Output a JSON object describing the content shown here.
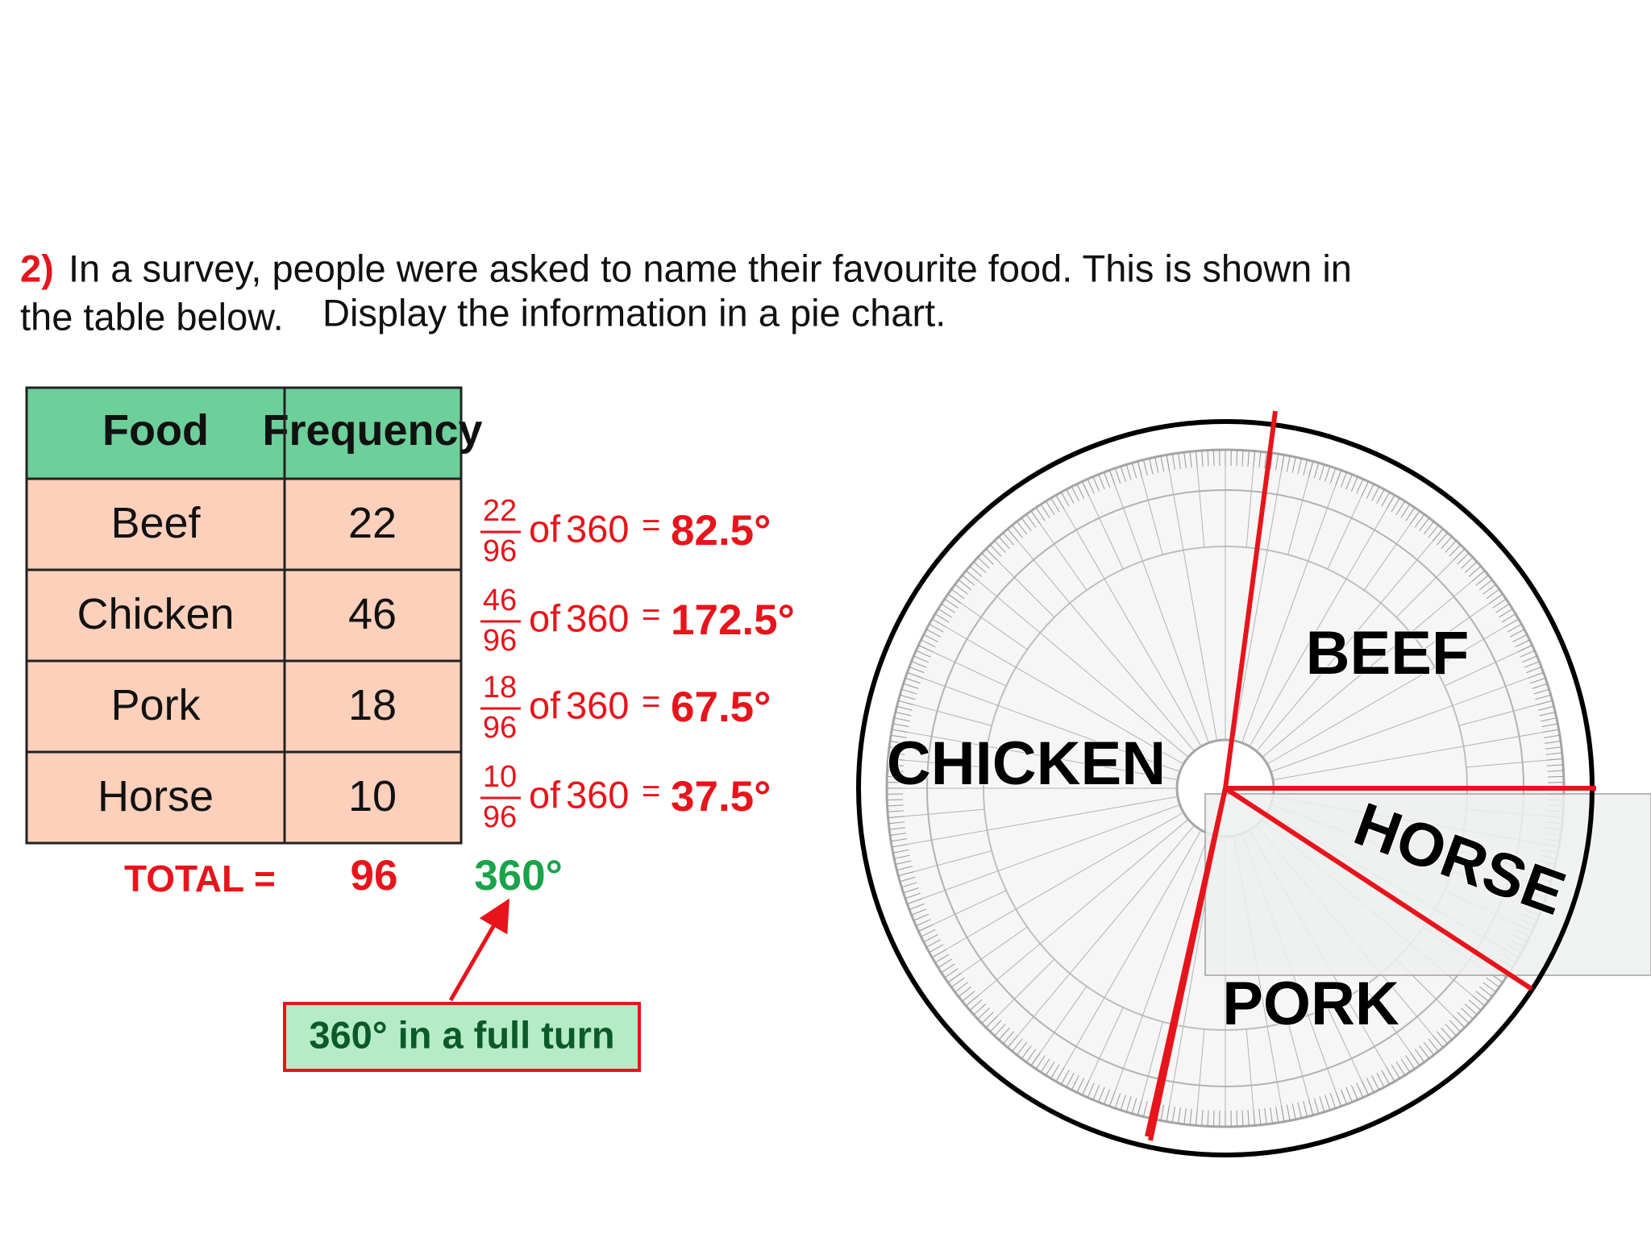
{
  "question": {
    "number": "2)",
    "line1": "In a survey, people were asked to name their favourite food. This is shown in",
    "line2a": "the table below.",
    "line2b": "Display the information in a pie chart."
  },
  "table": {
    "header": [
      "Food",
      "Frequency"
    ],
    "rows": [
      [
        "Beef",
        "22"
      ],
      [
        "Chicken",
        "46"
      ],
      [
        "Pork",
        "18"
      ],
      [
        "Horse",
        "10"
      ]
    ]
  },
  "calculations": [
    {
      "numerator": "22",
      "denominator": "96",
      "operation": "of",
      "whole": "360",
      "equals": "=",
      "result": "82.5°"
    },
    {
      "numerator": "46",
      "denominator": "96",
      "operation": "of",
      "whole": "360",
      "equals": "=",
      "result": "172.5°"
    },
    {
      "numerator": "18",
      "denominator": "96",
      "operation": "of",
      "whole": "360",
      "equals": "=",
      "result": "67.5°"
    },
    {
      "numerator": "10",
      "denominator": "96",
      "operation": "of",
      "whole": "360",
      "equals": "=",
      "result": "37.5°"
    }
  ],
  "total": {
    "label": "TOTAL =",
    "frequency": "96",
    "degrees": "360°"
  },
  "note": "360° in a full turn",
  "pie_labels": {
    "beef": "BEEF",
    "chicken": "CHICKEN",
    "horse": "HORSE",
    "pork": "PORK"
  }
}
